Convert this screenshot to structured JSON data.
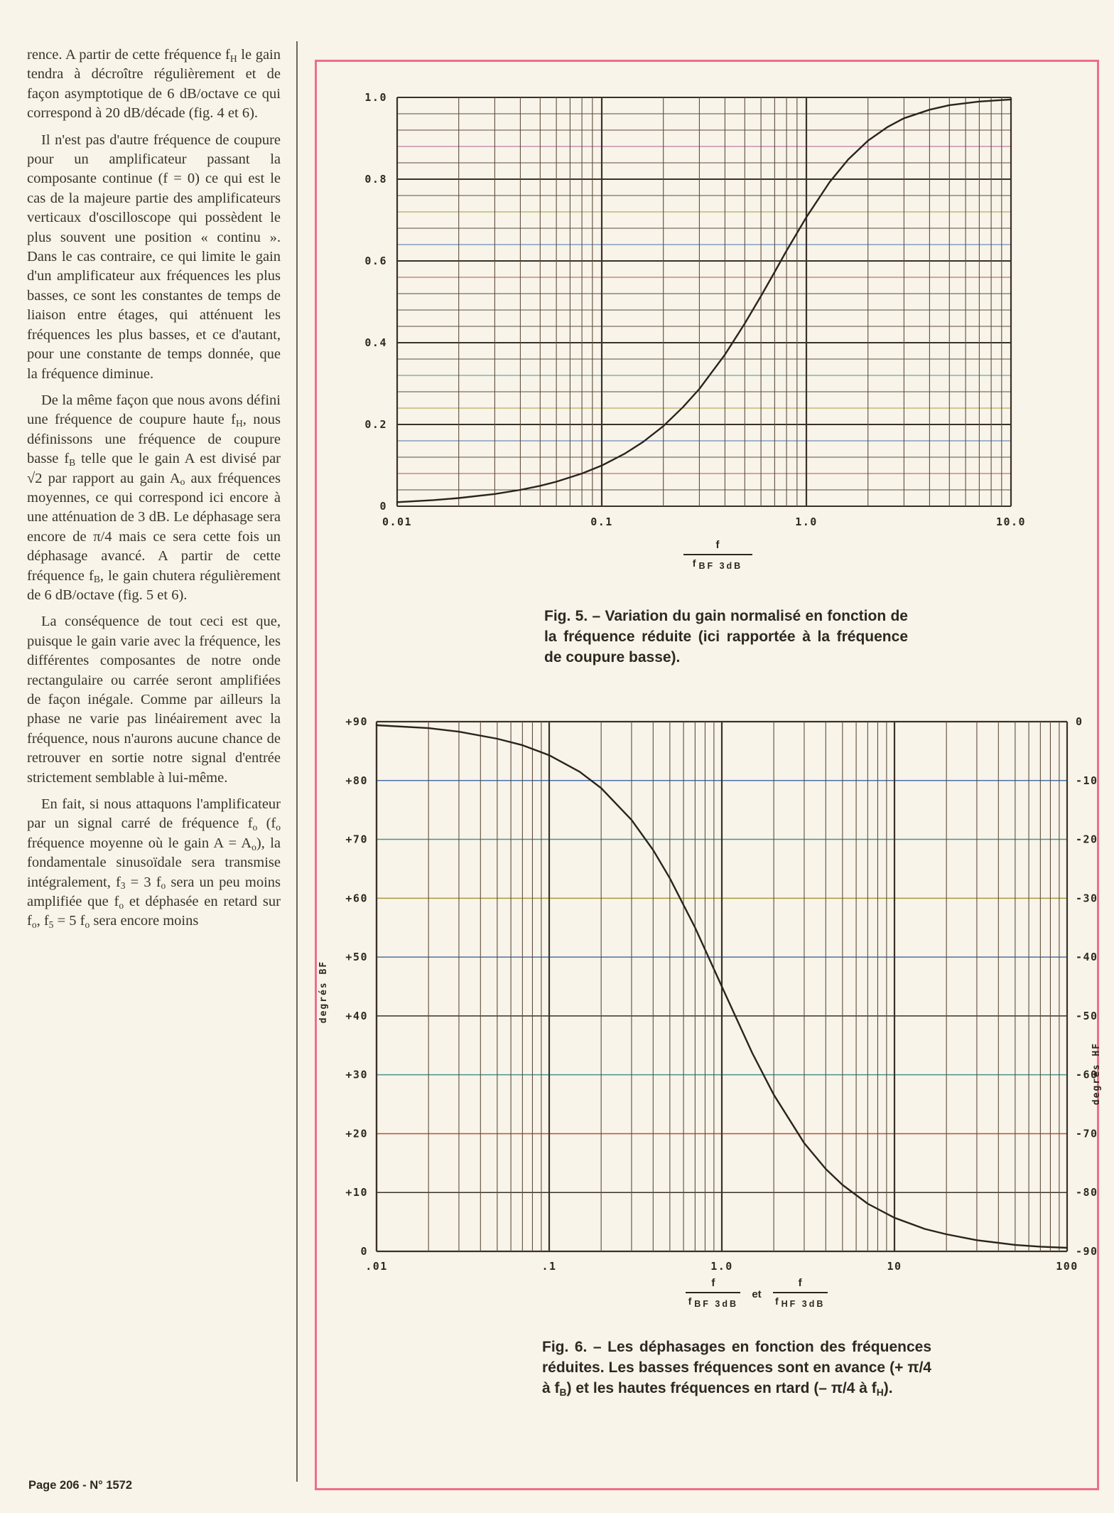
{
  "page": {
    "footer": "Page 206 - N° 1572",
    "accent_pink": "#ee6e8a",
    "paper_color": "#f8f4e9",
    "ink_color": "#332d26"
  },
  "article": {
    "paragraphs": [
      {
        "indent": false,
        "text": "rence. A partir de cette fréquence f~H~ le gain tendra à décroître régulièrement et de façon asymptotique de 6 dB/octave ce qui correspond à 20 dB/décade (fig. 4 et 6)."
      },
      {
        "indent": true,
        "text": "Il n'est pas d'autre fréquence de coupure pour un amplificateur passant la composante continue (f = 0) ce qui est le cas de la majeure partie des amplificateurs verticaux d'oscilloscope qui possèdent le plus souvent une position « continu ». Dans le cas contraire, ce qui limite le gain d'un amplificateur aux fréquences les plus basses, ce sont les constantes de temps de liaison entre étages, qui atténuent les fréquences les plus basses, et ce d'autant, pour une constante de temps donnée, que la fréquence diminue."
      },
      {
        "indent": true,
        "text": "De la même façon que nous avons défini une fréquence de coupure haute f~H~, nous définissons une fréquence de coupure basse f~B~ telle que le gain A est divisé par √2 par rapport au gain A~o~ aux fréquences moyennes, ce qui correspond ici encore à une atténuation de 3 dB. Le déphasage sera encore de π/4 mais ce sera cette fois un déphasage avancé. A partir de cette fréquence f~B~, le gain chutera régulièrement de 6 dB/octave (fig. 5 et 6)."
      },
      {
        "indent": true,
        "text": "La conséquence de tout ceci est que, puisque le gain varie avec la fréquence, les différentes composantes de notre onde rectangulaire ou carrée seront amplifiées de façon inégale. Comme par ailleurs la phase ne varie pas linéairement avec la fréquence, nous n'aurons aucune chance de retrouver en sortie notre signal d'entrée strictement semblable à lui-même."
      },
      {
        "indent": true,
        "text": "En fait, si nous attaquons l'amplificateur par un signal carré de fréquence f~o~ (f~o~ fréquence moyenne où le gain A = A~o~), la fondamentale sinusoïdale sera transmise intégralement, f~3~ = 3 f~o~ sera un peu moins amplifiée que f~o~ et déphasée en retard sur f~o~, f~5~ = 5 f~o~ sera encore moins"
      }
    ]
  },
  "figures": {
    "fig5": {
      "caption": "Fig. 5. – Variation du gain normalisé en fonction de la fréquence réduite (ici rapportée à la fréquence de coupure basse).",
      "xlabel": {
        "num": "f",
        "den": "f",
        "den_sub": "BF 3dB"
      }
    },
    "fig6": {
      "caption": "Fig. 6. – Les déphasages en fonction des fréquences réduites. Les basses fréquences sont en avance (+ π/4 à f~B~) et les hautes fréquences en rtard (– π/4 à f~H~).",
      "conjunction": "et",
      "xlabel_left": {
        "num": "f",
        "den": "f",
        "den_sub": "BF 3dB"
      },
      "xlabel_right": {
        "num": "f",
        "den": "f",
        "den_sub": "HF 3dB"
      }
    }
  },
  "chart_data": [
    {
      "id": "fig5",
      "type": "line",
      "title": "Fig. 5 – gain normalisé",
      "x_scale": "log",
      "xlim": [
        0.01,
        10
      ],
      "ylim": [
        0,
        1
      ],
      "grid": "on",
      "legend": "none",
      "xlabel": "f / fBF 3dB",
      "x_tick_labels": [
        "0.01",
        "0.1",
        "1.0",
        "10.0"
      ],
      "x_tick_values": [
        0.01,
        0.1,
        1,
        10
      ],
      "y_tick_labels": [
        "0",
        "0.2",
        "0.4",
        "0.6",
        "0.8",
        "1.0"
      ],
      "y_tick_values": [
        0,
        0.2,
        0.4,
        0.6,
        0.8,
        1
      ],
      "series": [
        {
          "name": "gain normalisé A/Ao",
          "points": [
            [
              0.01,
              0.01
            ],
            [
              0.015,
              0.015
            ],
            [
              0.02,
              0.02
            ],
            [
              0.03,
              0.03
            ],
            [
              0.04,
              0.04
            ],
            [
              0.05,
              0.05
            ],
            [
              0.06,
              0.06
            ],
            [
              0.08,
              0.08
            ],
            [
              0.1,
              0.0995
            ],
            [
              0.13,
              0.129
            ],
            [
              0.16,
              0.158
            ],
            [
              0.2,
              0.196
            ],
            [
              0.25,
              0.243
            ],
            [
              0.3,
              0.287
            ],
            [
              0.4,
              0.371
            ],
            [
              0.5,
              0.447
            ],
            [
              0.6,
              0.514
            ],
            [
              0.7,
              0.573
            ],
            [
              0.8,
              0.625
            ],
            [
              1.0,
              0.707
            ],
            [
              1.3,
              0.793
            ],
            [
              1.6,
              0.848
            ],
            [
              2.0,
              0.894
            ],
            [
              2.5,
              0.928
            ],
            [
              3.0,
              0.949
            ],
            [
              4.0,
              0.97
            ],
            [
              5.0,
              0.981
            ],
            [
              7.0,
              0.99
            ],
            [
              10.0,
              0.995
            ]
          ]
        }
      ]
    },
    {
      "id": "fig6",
      "type": "line",
      "title": "Fig. 6 – déphasages",
      "x_scale": "log",
      "xlim": [
        0.01,
        100
      ],
      "ylim_left": [
        0,
        90
      ],
      "ylim_right": [
        -90,
        0
      ],
      "grid": "on",
      "legend": "none",
      "xlabel": "f / fBF 3dB et f / fHF 3dB",
      "ylabel_left": "degrés BF",
      "ylabel_right": "degrés HF",
      "x_tick_labels": [
        ".01",
        ".1",
        "1.0",
        "10",
        "100"
      ],
      "x_tick_values": [
        0.01,
        0.1,
        1,
        10,
        100
      ],
      "y_left_tick_labels": [
        "+90",
        "+80",
        "+70",
        "+60",
        "+50",
        "+40",
        "+30",
        "+20",
        "+10",
        "0"
      ],
      "y_left_tick_values": [
        90,
        80,
        70,
        60,
        50,
        40,
        30,
        20,
        10,
        0
      ],
      "y_right_tick_labels": [
        "0",
        "-10",
        "-20",
        "-30",
        "-40",
        "-50",
        "-60",
        "-70",
        "-80",
        "-90"
      ],
      "series": [
        {
          "name": "déphasage (avance BF / retard HF)",
          "points": [
            [
              0.01,
              89.4
            ],
            [
              0.02,
              88.9
            ],
            [
              0.03,
              88.3
            ],
            [
              0.05,
              87.1
            ],
            [
              0.07,
              86.0
            ],
            [
              0.1,
              84.3
            ],
            [
              0.15,
              81.5
            ],
            [
              0.2,
              78.7
            ],
            [
              0.3,
              73.3
            ],
            [
              0.4,
              68.2
            ],
            [
              0.5,
              63.4
            ],
            [
              0.7,
              55.0
            ],
            [
              1.0,
              45.0
            ],
            [
              1.5,
              33.7
            ],
            [
              2.0,
              26.6
            ],
            [
              3.0,
              18.4
            ],
            [
              4.0,
              14.0
            ],
            [
              5.0,
              11.3
            ],
            [
              7.0,
              8.1
            ],
            [
              10.0,
              5.7
            ],
            [
              15.0,
              3.8
            ],
            [
              20.0,
              2.9
            ],
            [
              30.0,
              1.9
            ],
            [
              50.0,
              1.1
            ],
            [
              70.0,
              0.8
            ],
            [
              100.0,
              0.6
            ]
          ]
        }
      ]
    }
  ]
}
